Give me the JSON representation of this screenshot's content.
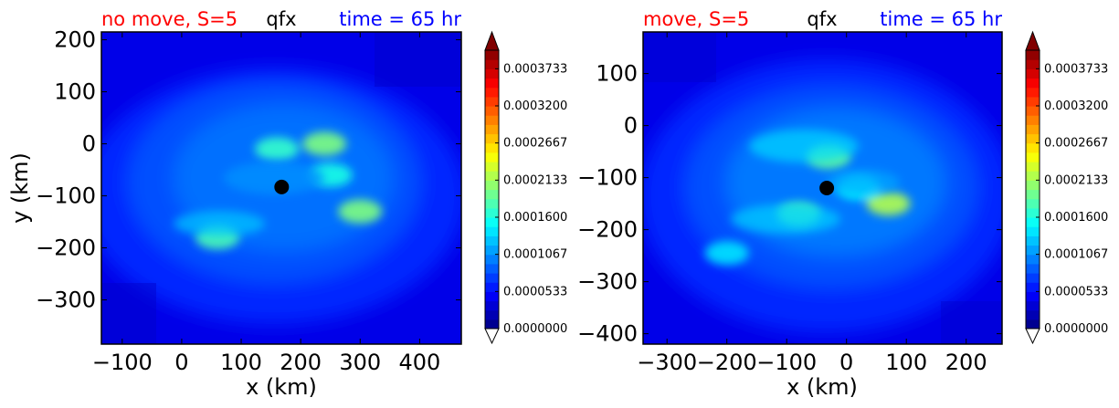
{
  "chart_data": [
    {
      "type": "heatmap",
      "variable": "qfx",
      "title_left": "no move, S=5",
      "title_center": "qfx",
      "title_right": "time = 65 hr",
      "xlabel": "x (km)",
      "ylabel": "y (km)",
      "xlim": [
        -135,
        470
      ],
      "ylim": [
        -385,
        215
      ],
      "xticks": [
        -100,
        0,
        100,
        200,
        300,
        400
      ],
      "xtick_labels": [
        "−100",
        "0",
        "100",
        "200",
        "300",
        "400"
      ],
      "yticks": [
        200,
        100,
        0,
        -100,
        -200,
        -300
      ],
      "ytick_labels": [
        "200",
        "100",
        "0",
        "−100",
        "−200",
        "−300"
      ],
      "center_marker": {
        "x": 168,
        "y": -83
      },
      "features": [
        {
          "x": 240,
          "y": 0,
          "value": 0.0002
        },
        {
          "x": 160,
          "y": -10,
          "value": 0.00017
        },
        {
          "x": 300,
          "y": -130,
          "value": 0.0002
        },
        {
          "x": 60,
          "y": -180,
          "value": 0.00018
        },
        {
          "x": 250,
          "y": -60,
          "value": 0.00016
        }
      ],
      "colorbar": {
        "min": 0.0,
        "max": 0.0004,
        "ticks": [
          "0.0003733",
          "0.0003200",
          "0.0002667",
          "0.0002133",
          "0.0001600",
          "0.0001067",
          "0.0000533",
          "0.0000000"
        ],
        "extend": "both",
        "colormap": "jet"
      }
    },
    {
      "type": "heatmap",
      "variable": "qfx",
      "title_left": "move, S=5",
      "title_center": "qfx",
      "title_right": "time = 65 hr",
      "xlabel": "x (km)",
      "ylabel": "",
      "xlim": [
        -340,
        260
      ],
      "ylim": [
        -420,
        180
      ],
      "xticks": [
        -300,
        -200,
        -100,
        0,
        100,
        200
      ],
      "xtick_labels": [
        "−300",
        "−200",
        "−100",
        "0",
        "100",
        "200"
      ],
      "yticks": [
        100,
        0,
        -100,
        -200,
        -300,
        -400
      ],
      "ytick_labels": [
        "100",
        "0",
        "−100",
        "−200",
        "−300",
        "−400"
      ],
      "center_marker": {
        "x": -33,
        "y": -120
      },
      "features": [
        {
          "x": 70,
          "y": -150,
          "value": 0.00022
        },
        {
          "x": -30,
          "y": -60,
          "value": 0.00019
        },
        {
          "x": -80,
          "y": -170,
          "value": 0.00018
        },
        {
          "x": -200,
          "y": -245,
          "value": 0.00014
        },
        {
          "x": 20,
          "y": -120,
          "value": 0.00015
        }
      ],
      "colorbar": {
        "min": 0.0,
        "max": 0.0004,
        "ticks": [
          "0.0003733",
          "0.0003200",
          "0.0002667",
          "0.0002133",
          "0.0001600",
          "0.0001067",
          "0.0000533",
          "0.0000000"
        ],
        "extend": "both",
        "colormap": "jet"
      }
    }
  ]
}
